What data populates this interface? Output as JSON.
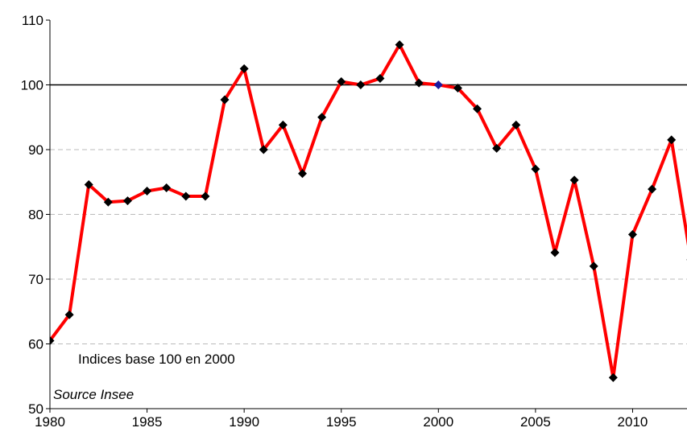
{
  "chart_data": {
    "type": "line",
    "x": [
      1980,
      1981,
      1982,
      1983,
      1984,
      1985,
      1986,
      1987,
      1988,
      1989,
      1990,
      1991,
      1992,
      1993,
      1994,
      1995,
      1996,
      1997,
      1998,
      1999,
      2000,
      2001,
      2002,
      2003,
      2004,
      2005,
      2006,
      2007,
      2008,
      2009,
      2010,
      2011,
      2012,
      2013
    ],
    "series": [
      {
        "name": "Indice",
        "color": "#ff0000",
        "marker_color": "#000000",
        "values": [
          60.5,
          64.5,
          84.6,
          81.9,
          82.1,
          83.6,
          84.1,
          82.8,
          82.8,
          97.7,
          102.5,
          90.0,
          93.8,
          86.3,
          95.0,
          100.5,
          100.0,
          101.0,
          106.2,
          100.3,
          100.0,
          99.5,
          96.3,
          90.2,
          93.8,
          87.0,
          74.1,
          85.3,
          72.0,
          54.8,
          76.9,
          83.9,
          91.5,
          73
        ]
      }
    ],
    "highlight": {
      "x": 2000,
      "color": "#1a1aa0"
    },
    "reference_line": 100,
    "xlim": [
      1980,
      2012.8
    ],
    "xticks": [
      1980,
      1985,
      1990,
      1995,
      2000,
      2005,
      2010
    ],
    "ylim": [
      50,
      110
    ],
    "yticks": [
      50,
      60,
      70,
      80,
      90,
      100,
      110
    ],
    "grid": true,
    "annotations": [
      "Indices base 100 en 2000",
      "Source Insee"
    ]
  }
}
